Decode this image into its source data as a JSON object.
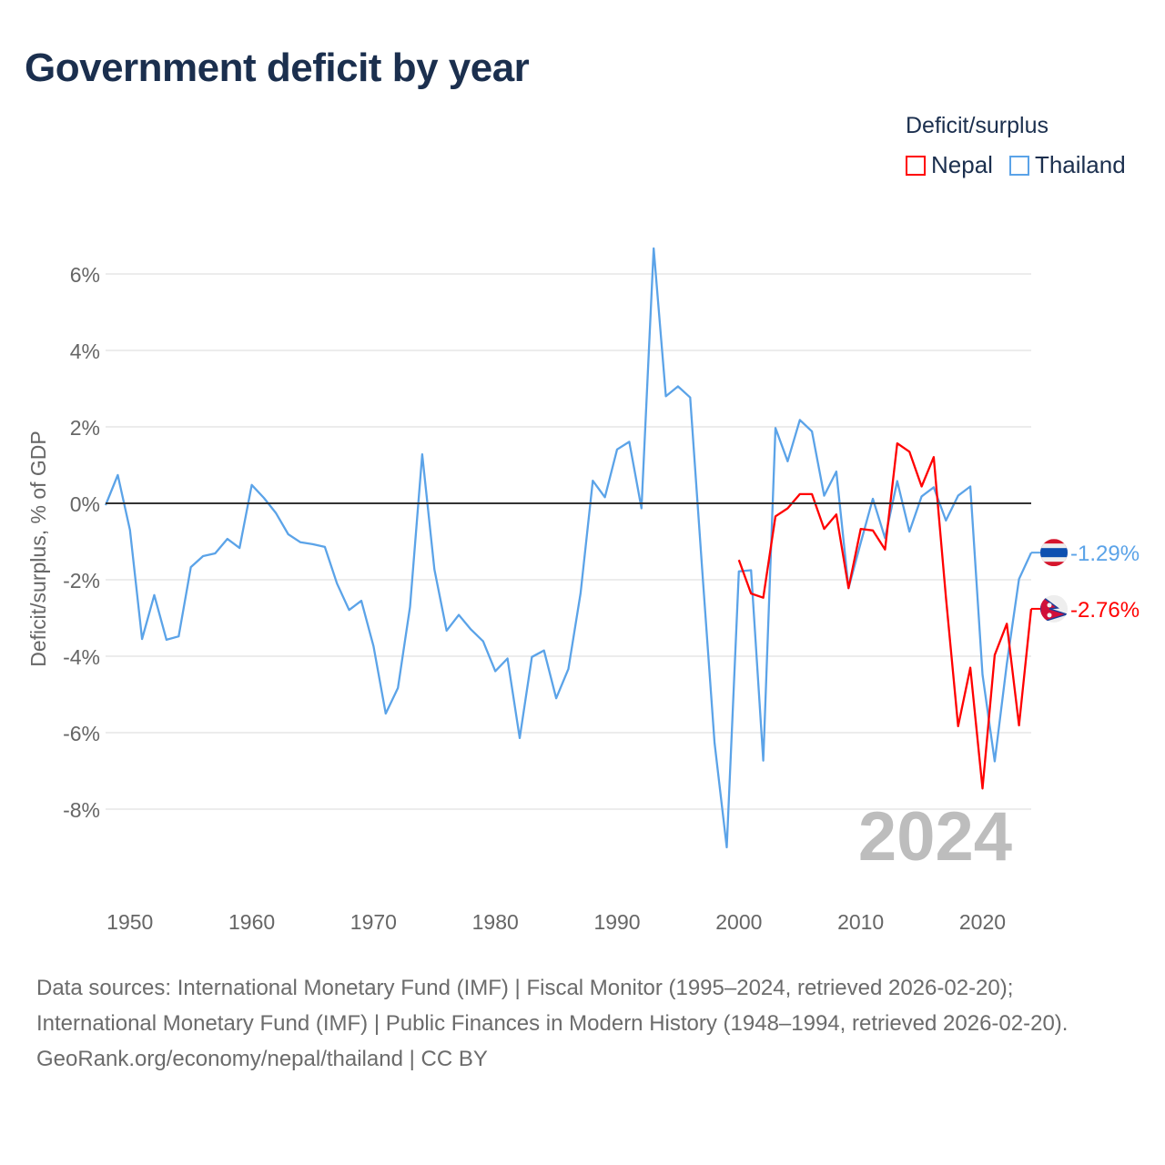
{
  "title": "Government deficit by year",
  "legend": {
    "title": "Deficit/surplus",
    "items": [
      {
        "name": "Nepal",
        "color": "#ff0000"
      },
      {
        "name": "Thailand",
        "color": "#5ba3e8"
      }
    ]
  },
  "footer": {
    "sources": "Data sources: International Monetary Fund (IMF) | Fiscal Monitor (1995–2024, retrieved 2026-02-20); International Monetary Fund (IMF) | Public Finances in Modern History (1948–1994, retrieved 2026-02-20).",
    "credit": "GeoRank.org/economy/nepal/thailand | CC BY"
  },
  "chart_data": {
    "type": "line",
    "title": "Government deficit by year",
    "xlabel": "",
    "ylabel": "Deficit/surplus, % of GDP",
    "xlim": [
      1948,
      2024
    ],
    "ylim": [
      -10,
      7
    ],
    "xticks": [
      1950,
      1960,
      1970,
      1980,
      1990,
      2000,
      2010,
      2020
    ],
    "yticks": [
      6,
      4,
      2,
      0,
      -2,
      -4,
      -6,
      -8
    ],
    "ytick_labels": [
      "6%",
      "4%",
      "2%",
      "0%",
      "-2%",
      "-4%",
      "-6%",
      "-8%"
    ],
    "grid": true,
    "legend_position": "top-right",
    "year_watermark": "2024",
    "series": [
      {
        "name": "Thailand",
        "color": "#5ba3e8",
        "end_label": "-1.29%",
        "x": [
          1948,
          1949,
          1950,
          1951,
          1952,
          1953,
          1954,
          1955,
          1956,
          1957,
          1958,
          1959,
          1960,
          1961,
          1962,
          1963,
          1964,
          1965,
          1966,
          1967,
          1968,
          1969,
          1970,
          1971,
          1972,
          1973,
          1974,
          1975,
          1976,
          1977,
          1978,
          1979,
          1980,
          1981,
          1982,
          1983,
          1984,
          1985,
          1986,
          1987,
          1988,
          1989,
          1990,
          1991,
          1992,
          1993,
          1994,
          1995,
          1996,
          1997,
          1998,
          1999,
          2000,
          2001,
          2002,
          2003,
          2004,
          2005,
          2006,
          2007,
          2008,
          2009,
          2010,
          2011,
          2012,
          2013,
          2014,
          2015,
          2016,
          2017,
          2018,
          2019,
          2020,
          2021,
          2022,
          2023,
          2024
        ],
        "values": [
          -0.05,
          0.74,
          -0.7,
          -3.55,
          -2.4,
          -3.57,
          -3.48,
          -1.67,
          -1.38,
          -1.31,
          -0.93,
          -1.17,
          0.48,
          0.14,
          -0.26,
          -0.81,
          -1.02,
          -1.07,
          -1.14,
          -2.1,
          -2.79,
          -2.55,
          -3.74,
          -5.5,
          -4.83,
          -2.71,
          1.28,
          -1.73,
          -3.33,
          -2.92,
          -3.3,
          -3.61,
          -4.39,
          -4.06,
          -6.14,
          -4.02,
          -3.85,
          -5.1,
          -4.33,
          -2.35,
          0.59,
          0.16,
          1.41,
          1.61,
          -0.13,
          6.67,
          2.8,
          3.06,
          2.77,
          -1.8,
          -6.27,
          -9.0,
          -1.78,
          -1.75,
          -6.73,
          1.97,
          1.1,
          2.18,
          1.88,
          0.2,
          0.83,
          -2.22,
          -1.03,
          0.12,
          -0.91,
          0.58,
          -0.74,
          0.18,
          0.42,
          -0.45,
          0.2,
          0.44,
          -4.48,
          -6.75,
          -4.2,
          -1.98,
          -1.29
        ]
      },
      {
        "name": "Nepal",
        "color": "#ff0000",
        "end_label": "-2.76%",
        "x": [
          2000,
          2001,
          2002,
          2003,
          2004,
          2005,
          2006,
          2007,
          2008,
          2009,
          2010,
          2011,
          2012,
          2013,
          2014,
          2015,
          2016,
          2017,
          2018,
          2019,
          2020,
          2021,
          2022,
          2023,
          2024
        ],
        "values": [
          -1.48,
          -2.36,
          -2.47,
          -0.34,
          -0.13,
          0.24,
          0.24,
          -0.67,
          -0.29,
          -2.22,
          -0.67,
          -0.71,
          -1.21,
          1.57,
          1.35,
          0.44,
          1.21,
          -2.46,
          -5.83,
          -4.3,
          -7.46,
          -3.97,
          -3.15,
          -5.81,
          -2.76
        ]
      }
    ]
  }
}
